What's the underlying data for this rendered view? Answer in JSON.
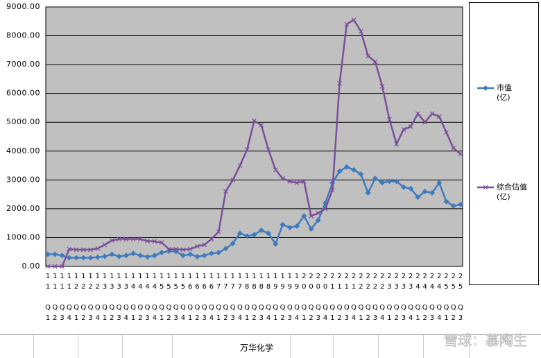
{
  "chart_data": {
    "type": "line",
    "categories": [
      "11Q1",
      "11Q2",
      "11Q3",
      "11Q4",
      "12Q1",
      "12Q2",
      "12Q3",
      "12Q4",
      "13Q1",
      "13Q2",
      "13Q3",
      "13Q4",
      "14Q1",
      "14Q2",
      "14Q3",
      "14Q4",
      "15Q1",
      "15Q2",
      "15Q3",
      "15Q4",
      "16Q1",
      "16Q2",
      "16Q3",
      "16Q4",
      "17Q1",
      "17Q2",
      "17Q3",
      "17Q4",
      "18Q1",
      "18Q2",
      "18Q3",
      "18Q4",
      "19Q1",
      "19Q2",
      "19Q3",
      "19Q4",
      "20Q1",
      "20Q2",
      "20Q3",
      "20Q4",
      "21Q1",
      "21Q2",
      "21Q3",
      "21Q4",
      "22Q1",
      "22Q2",
      "22Q3",
      "22Q4",
      "23Q1",
      "23Q2",
      "23Q3",
      "23Q4",
      "24Q1",
      "24Q2",
      "24Q3",
      "24Q4",
      "25Q1",
      "25Q2",
      "25Q3"
    ],
    "series": [
      {
        "name": "市值\n(亿)",
        "color": "#3e7bbd",
        "marker": "diamond",
        "values": [
          420,
          420,
          380,
          300,
          300,
          300,
          300,
          320,
          350,
          420,
          350,
          380,
          450,
          380,
          330,
          380,
          480,
          530,
          520,
          380,
          420,
          340,
          380,
          450,
          480,
          620,
          800,
          1150,
          1050,
          1100,
          1250,
          1150,
          780,
          1450,
          1350,
          1400,
          1750,
          1300,
          1600,
          2200,
          2900,
          3300,
          3450,
          3350,
          3200,
          2550,
          3050,
          2900,
          2950,
          2950,
          2750,
          2700,
          2400,
          2600,
          2550,
          2900,
          2250,
          2100,
          2150
        ]
      },
      {
        "name": "综合估值\n(亿)",
        "color": "#7a4f9a",
        "marker": "x",
        "values": [
          0,
          0,
          0,
          600,
          580,
          580,
          580,
          620,
          750,
          900,
          950,
          950,
          950,
          950,
          880,
          870,
          830,
          600,
          600,
          580,
          600,
          700,
          750,
          950,
          1200,
          2600,
          3000,
          3500,
          4050,
          5050,
          4900,
          4050,
          3350,
          3050,
          2950,
          2900,
          2950,
          1750,
          1850,
          2000,
          2650,
          6350,
          8400,
          8550,
          8150,
          7300,
          7100,
          6250,
          5100,
          4250,
          4750,
          4850,
          5300,
          5000,
          5300,
          5200,
          4650,
          4100,
          3900
        ]
      }
    ],
    "ylim": [
      0,
      9000
    ],
    "yticks": [
      {
        "value": 0,
        "label": "0.00"
      },
      {
        "value": 1000,
        "label": "1000.00"
      },
      {
        "value": 2000,
        "label": "2000.00"
      },
      {
        "value": 3000,
        "label": "3000.00"
      },
      {
        "value": 4000,
        "label": "4000.00"
      },
      {
        "value": 5000,
        "label": "5000.00"
      },
      {
        "value": 6000,
        "label": "6000.00"
      },
      {
        "value": 7000,
        "label": "7000.00"
      },
      {
        "value": 8000,
        "label": "8000.00"
      },
      {
        "value": 9000,
        "label": "9000.00"
      }
    ],
    "grid": true,
    "footer": "万华化学",
    "watermark": "雪球：慕陶生"
  }
}
